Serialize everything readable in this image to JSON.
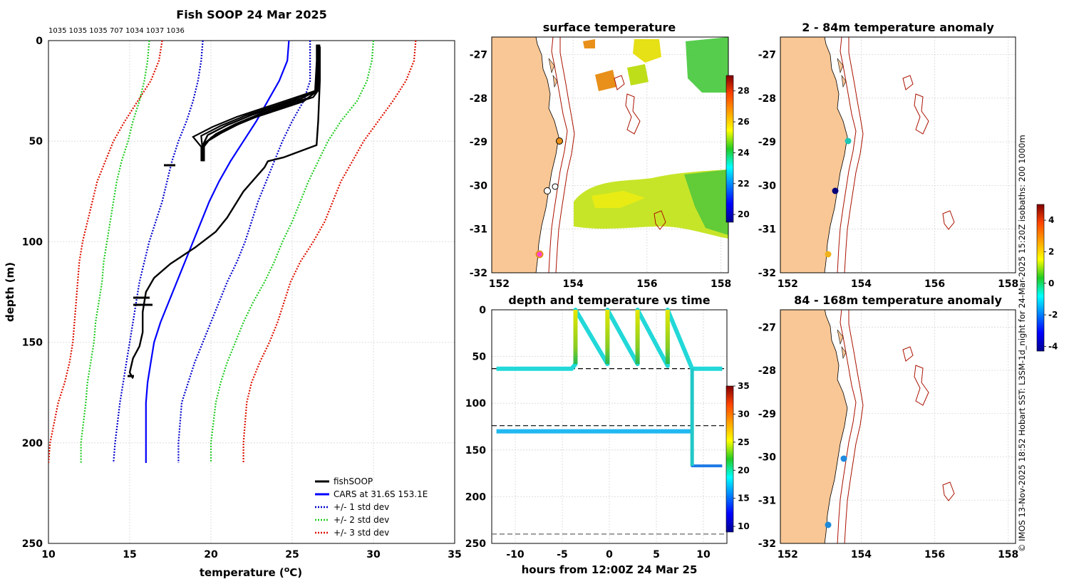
{
  "colors": {
    "fish": "#000000",
    "cars": "#0000ff",
    "std1": "#0000cc",
    "std2": "#22cc22",
    "std3": "#dd1100",
    "land": "#f9c795",
    "isobath": "#aa1100"
  },
  "profile": {
    "title": "Fish SOOP 24 Mar 2025",
    "ids": "1035 1035 1035 707 1034 1037 1036",
    "xlabel": "temperature (",
    "xlabel_unit": "o",
    "xlabel_end": "C)",
    "ylabel": "depth (m)",
    "xticks": [
      "10",
      "15",
      "20",
      "25",
      "30",
      "35"
    ],
    "yticks": [
      "0",
      "50",
      "100",
      "150",
      "200",
      "250"
    ],
    "legend": [
      "fishSOOP",
      "CARS at 31.6S 153.1E",
      "+/- 1 std dev",
      "+/- 2 std dev",
      "+/- 3 std dev"
    ]
  },
  "chart_data": [
    {
      "type": "line",
      "title": "Fish SOOP 24 Mar 2025",
      "xlabel": "temperature (oC)",
      "ylabel": "depth (m)",
      "xlim": [
        10,
        35
      ],
      "ylim": [
        250,
        0
      ],
      "series": [
        {
          "name": "CARS at 31.6S 153.1E",
          "temp": [
            24.8,
            24.7,
            24.2,
            23.5,
            22.8,
            22.0,
            21.2,
            20.5,
            19.9,
            19.4,
            18.9,
            18.4,
            17.9,
            17.4,
            16.9,
            16.5,
            16.3,
            16.1,
            16.0,
            16.0,
            16.0
          ],
          "depth": [
            0,
            10,
            20,
            30,
            40,
            50,
            60,
            70,
            80,
            90,
            100,
            110,
            120,
            130,
            140,
            150,
            160,
            170,
            180,
            200,
            210
          ]
        },
        {
          "name": "+/- 1 std dev low",
          "temp": [
            19.5,
            19.4,
            19.2,
            18.9,
            18.5,
            18.0,
            17.6,
            17.3,
            17.0,
            16.6,
            16.2,
            15.9,
            15.6,
            15.4,
            15.2,
            15.0,
            14.8,
            14.6,
            14.4,
            14.1,
            14.0
          ],
          "depth": [
            0,
            10,
            20,
            30,
            40,
            50,
            60,
            70,
            80,
            90,
            100,
            110,
            120,
            130,
            140,
            150,
            160,
            170,
            180,
            200,
            210
          ]
        },
        {
          "name": "+/- 1 std dev high",
          "temp": [
            26.1,
            26.1,
            26.1,
            25.7,
            25.0,
            24.4,
            23.9,
            23.4,
            22.9,
            22.5,
            22.1,
            21.6,
            21.0,
            20.5,
            20.0,
            19.5,
            19.0,
            18.6,
            18.2,
            18.0,
            18.0
          ],
          "depth": [
            0,
            10,
            20,
            30,
            40,
            50,
            60,
            70,
            80,
            90,
            100,
            110,
            120,
            130,
            140,
            150,
            160,
            170,
            180,
            200,
            210
          ]
        },
        {
          "name": "+/- 2 std dev low",
          "temp": [
            16.2,
            16.1,
            15.9,
            15.6,
            15.2,
            14.9,
            14.5,
            14.2,
            14.0,
            13.8,
            13.6,
            13.4,
            13.3,
            13.1,
            12.9,
            12.8,
            12.6,
            12.4,
            12.3,
            12.0,
            12.0
          ],
          "depth": [
            0,
            10,
            20,
            30,
            40,
            50,
            60,
            70,
            80,
            90,
            100,
            110,
            120,
            130,
            140,
            150,
            160,
            170,
            180,
            200,
            210
          ]
        },
        {
          "name": "+/- 2 std dev high",
          "temp": [
            30.0,
            29.9,
            29.6,
            29.0,
            28.0,
            27.2,
            26.6,
            26.0,
            25.5,
            25.0,
            24.4,
            23.9,
            23.3,
            22.6,
            22.0,
            21.5,
            21.0,
            20.6,
            20.3,
            20.0,
            20.0
          ],
          "depth": [
            0,
            10,
            20,
            30,
            40,
            50,
            60,
            70,
            80,
            90,
            100,
            110,
            120,
            130,
            140,
            150,
            160,
            170,
            180,
            200,
            210
          ]
        },
        {
          "name": "+/- 3 std dev low",
          "temp": [
            17.0,
            16.8,
            16.3,
            15.5,
            14.7,
            14.0,
            13.5,
            13.0,
            12.7,
            12.4,
            12.1,
            11.9,
            11.8,
            11.7,
            11.6,
            11.5,
            11.3,
            11.0,
            10.6,
            10.1,
            10.0
          ],
          "depth": [
            0,
            10,
            20,
            30,
            40,
            50,
            60,
            70,
            80,
            90,
            100,
            110,
            120,
            130,
            140,
            150,
            160,
            170,
            180,
            200,
            210
          ]
        },
        {
          "name": "+/- 3 std dev high",
          "temp": [
            32.6,
            32.5,
            32.0,
            31.2,
            30.3,
            29.4,
            28.7,
            28.0,
            27.5,
            27.0,
            26.3,
            25.5,
            24.9,
            24.5,
            24.1,
            23.6,
            23.0,
            22.5,
            22.2,
            22.0,
            22.0
          ],
          "depth": [
            0,
            10,
            20,
            30,
            40,
            50,
            60,
            70,
            80,
            90,
            100,
            110,
            120,
            130,
            140,
            150,
            160,
            170,
            180,
            200,
            210
          ]
        },
        {
          "name": "fishSOOP deep cast",
          "temp": [
            26.7,
            26.7,
            26.6,
            26.5,
            25.5,
            24.5,
            23.5,
            23.3,
            22.0,
            21.0,
            20.3,
            19.0,
            17.5,
            16.5,
            16.0,
            15.8,
            15.8,
            15.6,
            15.2,
            15.0,
            15.2
          ],
          "depth": [
            3,
            20,
            40,
            52,
            55,
            58,
            60,
            63,
            75,
            88,
            95,
            103,
            111,
            118,
            125,
            135,
            145,
            152,
            158,
            165,
            168
          ]
        },
        {
          "name": "fishSOOP shallow casts",
          "temp": [
            26.6,
            26.6,
            26.5,
            25.5,
            24.0,
            22.5,
            21.0,
            19.8,
            19.5,
            19.5,
            19.5
          ],
          "depth": [
            2,
            10,
            25,
            29,
            33,
            37,
            42,
            47,
            52,
            57,
            60
          ]
        }
      ]
    },
    {
      "type": "heatmap",
      "title": "surface temperature",
      "xticks": [
        "152",
        "154",
        "156",
        "158"
      ],
      "yticks": [
        "-27",
        "-28",
        "-29",
        "-30",
        "-31",
        "-32"
      ],
      "colorbar": {
        "ticks": [
          "28",
          "26",
          "24",
          "22",
          "20"
        ],
        "min": 19.5,
        "max": 29
      }
    },
    {
      "type": "scatter",
      "title": "depth and temperature vs time",
      "xlabel": "hours from 12:00Z 24 Mar 25",
      "xticks": [
        "-10",
        "-5",
        "0",
        "5",
        "10"
      ],
      "yticks": [
        "0",
        "50",
        "100",
        "150",
        "200",
        "250"
      ],
      "colorbar": {
        "ticks": [
          "35",
          "30",
          "25",
          "20",
          "15",
          "10"
        ],
        "min": 9,
        "max": 35
      },
      "reference_depths": [
        63,
        124,
        240
      ],
      "series": [
        {
          "name": "shallow",
          "hours": [
            -12,
            -4,
            -3.6,
            -3.6,
            -0.2,
            -0.2,
            3.0,
            3.0,
            6.2,
            6.2,
            8.8,
            12
          ],
          "depth": [
            63,
            63,
            58,
            0,
            58,
            0,
            58,
            0,
            60,
            0,
            63,
            63
          ]
        },
        {
          "name": "mid",
          "hours": [
            -12,
            8.8
          ],
          "depth": [
            130,
            130
          ]
        },
        {
          "name": "deep",
          "hours": [
            8.8,
            8.8,
            12
          ],
          "depth": [
            63,
            167,
            167
          ]
        }
      ]
    },
    {
      "type": "scatter",
      "title": "2 - 84m temperature anomaly",
      "xticks": [
        "152",
        "154",
        "156",
        "158"
      ],
      "yticks": [
        "-27",
        "-28",
        "-29",
        "-30",
        "-31",
        "-32"
      ],
      "colorbar": {
        "ticks": [
          "4",
          "2",
          "0",
          "-2",
          "-4"
        ],
        "min": -4.3,
        "max": 5
      },
      "points": [
        {
          "lon": 153.7,
          "lat": -28.95,
          "anom": -1.3
        },
        {
          "lon": 153.55,
          "lat": -30.05,
          "anom": -4
        },
        {
          "lon": 153.1,
          "lat": -31.6,
          "anom": 2.3
        }
      ]
    },
    {
      "type": "scatter",
      "title": "84 - 168m temperature anomaly",
      "xticks": [
        "152",
        "154",
        "156",
        "158"
      ],
      "yticks": [
        "-27",
        "-28",
        "-29",
        "-30",
        "-31",
        "-32"
      ],
      "points": [
        {
          "lon": 153.55,
          "lat": -30.0,
          "anom": -2.2
        },
        {
          "lon": 153.1,
          "lat": -31.6,
          "anom": -2.5
        }
      ]
    }
  ],
  "footer": "© IMOS 13-Nov-2025 18:52 Hobart SST: L3SM-1d_night for 24-Mar-2025 15:20Z isobaths: 200  1000m"
}
